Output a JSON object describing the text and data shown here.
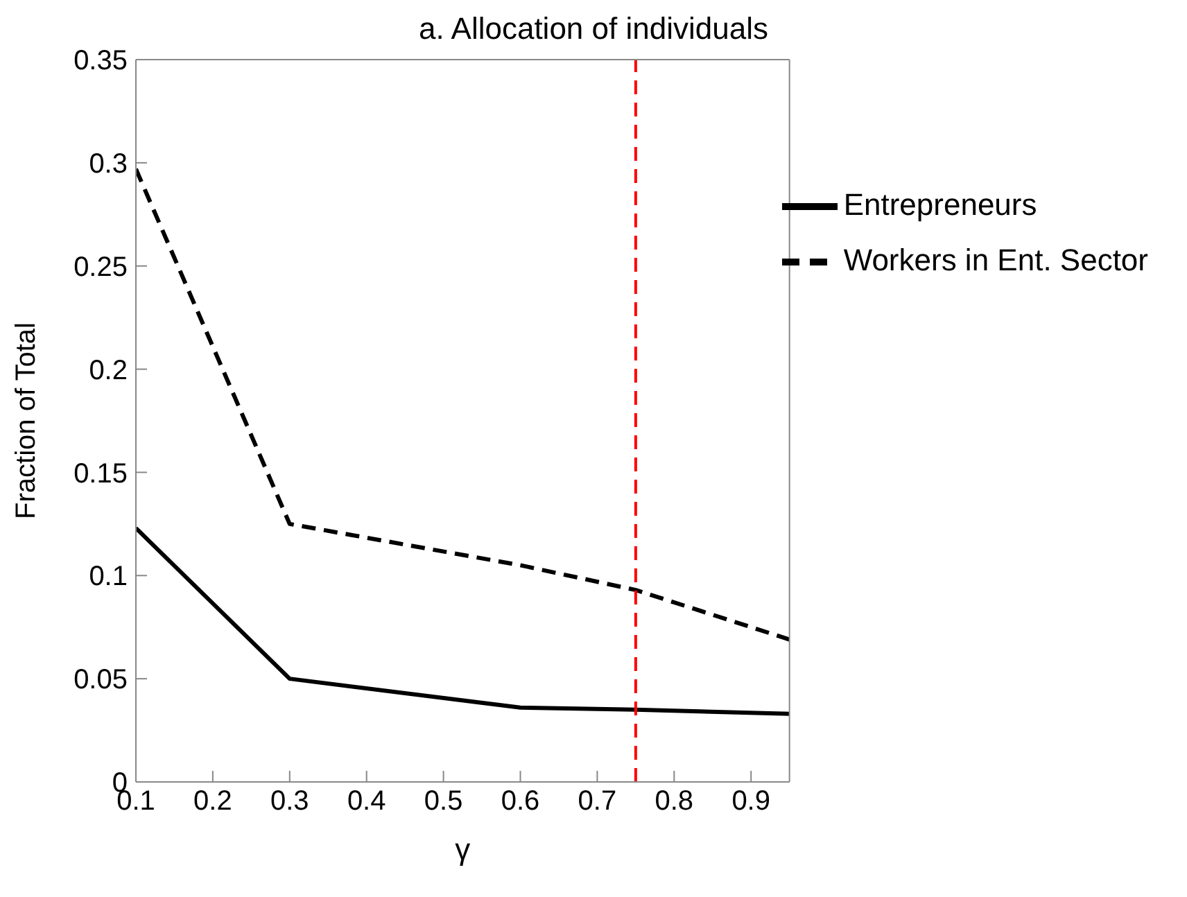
{
  "chart_data": {
    "type": "line",
    "title": "a. Allocation of individuals",
    "xlabel": "γ",
    "ylabel": "Fraction of Total",
    "x": [
      0.1,
      0.3,
      0.6,
      0.75,
      0.95
    ],
    "series": [
      {
        "name": "Entrepreneurs",
        "color": "#000000",
        "values": [
          0.123,
          0.05,
          0.036,
          0.035,
          0.033
        ],
        "line_style": "solid"
      },
      {
        "name": "Workers in Ent. Sector",
        "color": "#000000",
        "values": [
          0.297,
          0.125,
          0.105,
          0.093,
          0.069
        ],
        "line_style": "dashed"
      }
    ],
    "xlim": [
      0.1,
      0.95
    ],
    "xticks": [
      0.1,
      0.2,
      0.3,
      0.4,
      0.5,
      0.6,
      0.7,
      0.8,
      0.9
    ],
    "ylim": [
      0,
      0.35
    ],
    "yticks": [
      0,
      0.05,
      0.1,
      0.15,
      0.2,
      0.25,
      0.3,
      0.35
    ],
    "ref_lines": [
      {
        "axis": "x",
        "value": 0.75,
        "color": "#ff0000",
        "line_style": "dashed"
      }
    ],
    "legend": "top right",
    "grid": false,
    "marker": "none"
  }
}
